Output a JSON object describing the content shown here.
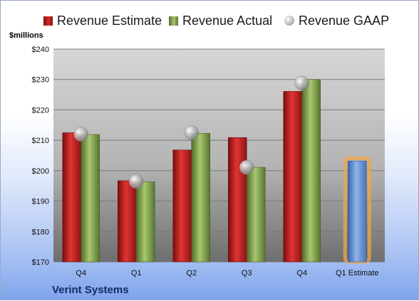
{
  "legend": {
    "estimate": "Revenue Estimate",
    "actual": "Revenue Actual",
    "gaap": "Revenue GAAP"
  },
  "unit_label": "$millions",
  "company": "Verint Systems",
  "colors": {
    "estimate": "#c0201f",
    "actual": "#8db04c",
    "gaap": "#b5b5b5",
    "forecast": "#6f9bd6",
    "forecast_glow": "#f2a64a"
  },
  "chart_data": {
    "type": "bar",
    "categories": [
      "Q4",
      "Q1",
      "Q2",
      "Q3",
      "Q4",
      "Q1 Estimate"
    ],
    "ylim": [
      170,
      240
    ],
    "yticks": [
      170,
      180,
      190,
      200,
      210,
      220,
      230,
      240
    ],
    "ytick_labels": [
      "$170",
      "$180",
      "$190",
      "$200",
      "$210",
      "$220",
      "$230",
      "$240"
    ],
    "grid": true,
    "legend_position": "top",
    "series": [
      {
        "name": "Revenue Estimate",
        "type": "bar",
        "values": [
          212.5,
          196.7,
          206.8,
          210.9,
          226.1,
          null
        ]
      },
      {
        "name": "Revenue Actual",
        "type": "bar",
        "values": [
          211.9,
          196.3,
          212.3,
          201.1,
          230.0,
          null
        ]
      },
      {
        "name": "Revenue GAAP",
        "type": "scatter",
        "values": [
          212.0,
          196.5,
          212.5,
          201.1,
          228.8,
          null
        ]
      }
    ],
    "forecast": {
      "category": "Q1 Estimate",
      "value": 203.2
    }
  }
}
